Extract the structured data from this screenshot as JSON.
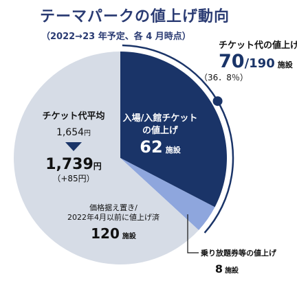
{
  "header": {
    "title": "テーマパークの値上げ動向",
    "subtitle": "（2022→23 年予定、各 4 月時点）"
  },
  "colors": {
    "dark": "#1a3468",
    "light_blue": "#8ea6dd",
    "gray": "#d6dce6",
    "title": "#2a3b73"
  },
  "chart_data": {
    "type": "pie",
    "total": 190,
    "slices": [
      {
        "label_lines": [
          "入場/入館チケット",
          "の値上げ"
        ],
        "value": 62,
        "unit": "施設",
        "color": "#1a3468"
      },
      {
        "label_lines": [
          "乗り放題券等の値上げ"
        ],
        "value": 8,
        "unit": "施設",
        "color": "#8ea6dd"
      },
      {
        "label_lines": [
          "価格据え置き/",
          "2022年4月以前に値上げ済"
        ],
        "value": 120,
        "unit": "施設",
        "color": "#d6dce6"
      }
    ],
    "callout": {
      "label": "チケット代の値上げ",
      "value": "70",
      "total_text": "/190",
      "unit": "施設",
      "percent": "（36．8％）"
    },
    "average": {
      "label": "チケット代平均",
      "before": "1,654",
      "after": "1,739",
      "unit": "円",
      "change": "（+85円）"
    }
  }
}
